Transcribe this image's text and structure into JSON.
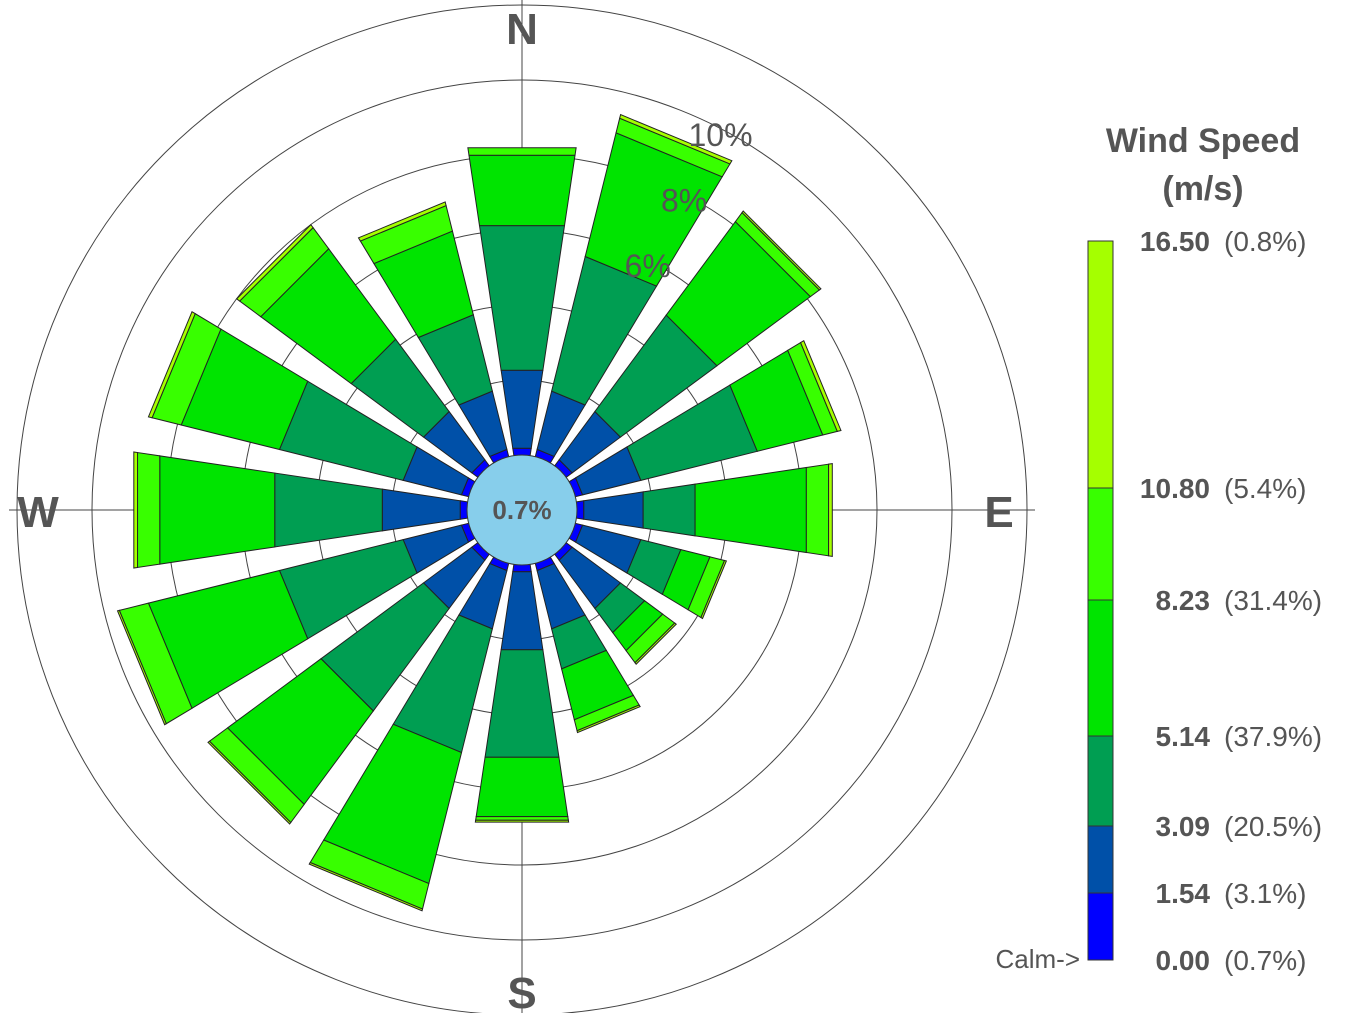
{
  "chart_data": {
    "type": "windrose",
    "title": "",
    "directions_deg": [
      0,
      22.5,
      45,
      67.5,
      90,
      112.5,
      135,
      157.5,
      180,
      202.5,
      225,
      247.5,
      270,
      292.5,
      315,
      337.5
    ],
    "cardinal_labels": {
      "north": "N",
      "east": "E",
      "south": "S",
      "west": "W"
    },
    "radial_ticks": [
      {
        "value": 2,
        "label": ""
      },
      {
        "value": 4,
        "label": ""
      },
      {
        "value": 6,
        "label": "6%"
      },
      {
        "value": 8,
        "label": "8%"
      },
      {
        "value": 10,
        "label": "10%"
      }
    ],
    "rmax": 12,
    "calm": {
      "value": 0.7,
      "label": "0.7%"
    },
    "colors": [
      "#0000ff",
      "#0050a8",
      "#009e52",
      "#00e400",
      "#38ff00",
      "#a5ff00"
    ],
    "series_bounds": [
      "0.00-1.54",
      "1.54-3.09",
      "3.09-5.14",
      "5.14-8.23",
      "8.23-10.80",
      "10.80-16.50"
    ],
    "cumulative_percent": [
      [
        0.2,
        2.3,
        6.2,
        8.1,
        8.3,
        8.3
      ],
      [
        0.2,
        1.8,
        5.5,
        8.9,
        9.3,
        9.4
      ],
      [
        0.2,
        1.8,
        5.0,
        8.1,
        8.4,
        8.45
      ],
      [
        0.2,
        1.8,
        5.0,
        6.8,
        7.2,
        7.3
      ],
      [
        0.2,
        1.8,
        3.2,
        6.2,
        6.8,
        6.9
      ],
      [
        0.2,
        1.8,
        2.9,
        3.7,
        4.1,
        4.15
      ],
      [
        0.2,
        1.8,
        2.6,
        3.2,
        3.6,
        3.65
      ],
      [
        0.2,
        1.8,
        2.9,
        4.3,
        4.6,
        4.65
      ],
      [
        0.2,
        2.3,
        5.2,
        6.8,
        6.9,
        6.95
      ],
      [
        0.2,
        1.8,
        5.2,
        8.8,
        9.5,
        9.55
      ],
      [
        0.2,
        1.8,
        5.2,
        8.3,
        8.9,
        8.95
      ],
      [
        0.2,
        1.8,
        5.2,
        8.8,
        9.6,
        9.65
      ],
      [
        0.2,
        2.3,
        5.2,
        8.3,
        8.9,
        9.0
      ],
      [
        0.2,
        1.8,
        5.2,
        7.9,
        8.7,
        8.8
      ],
      [
        0.2,
        1.8,
        4.2,
        7.2,
        7.9,
        8.0
      ],
      [
        0.2,
        1.8,
        3.9,
        6.2,
        6.9,
        7.0
      ]
    ]
  },
  "legend": {
    "title_line1": "Wind Speed",
    "title_line2": "(m/s)",
    "calm_pointer": "Calm->",
    "entries": [
      {
        "value": "16.50",
        "percent": "(0.8%)"
      },
      {
        "value": "10.80",
        "percent": "(5.4%)"
      },
      {
        "value": "8.23",
        "percent": "(31.4%)"
      },
      {
        "value": "5.14",
        "percent": "(37.9%)"
      },
      {
        "value": "3.09",
        "percent": "(20.5%)"
      },
      {
        "value": "1.54",
        "percent": "(3.1%)"
      },
      {
        "value": "0.00",
        "percent": "(0.7%)"
      }
    ],
    "colors_top_to_bottom": [
      "#a5ff00",
      "#38ff00",
      "#00e400",
      "#00e400",
      "#009e52",
      "#0050a8",
      "#0000ff"
    ]
  }
}
